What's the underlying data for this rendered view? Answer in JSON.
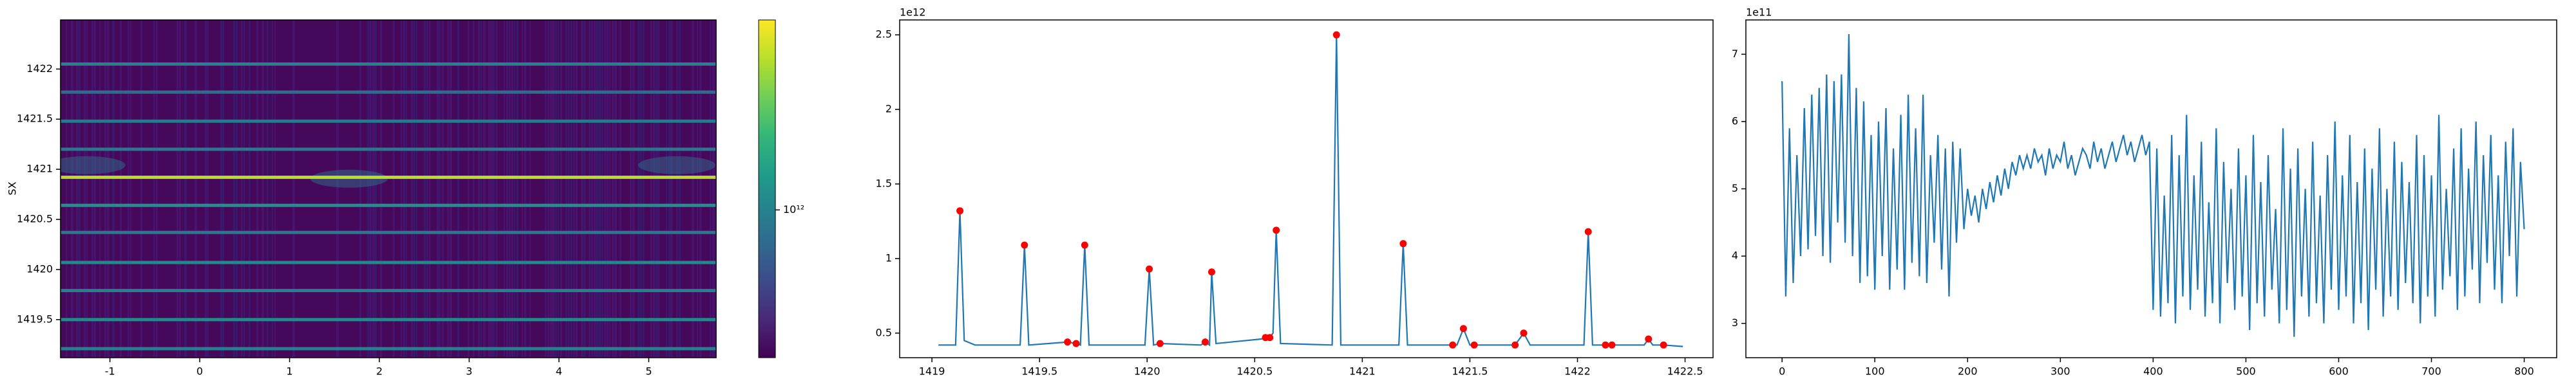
{
  "chart_data": [
    {
      "type": "heatmap",
      "ylabel": "SX",
      "xlim": [
        -1.55,
        5.75
      ],
      "xticks": [
        -1,
        0,
        1,
        2,
        3,
        4,
        5
      ],
      "ylim": [
        1419.12,
        1422.49
      ],
      "yticks": [
        1419.5,
        1420.0,
        1420.5,
        1421.0,
        1421.5,
        1422.0
      ],
      "rows": {
        "y": [
          1422.05,
          1421.77,
          1421.48,
          1421.2,
          1420.92,
          1420.64,
          1420.37,
          1420.07,
          1419.79,
          1419.5,
          1419.21
        ],
        "values": [
          1000000000000.0,
          800000000000.0,
          900000000000.0,
          900000000000.0,
          3500000000000.0,
          1200000000000.0,
          900000000000.0,
          1100000000000.0,
          1000000000000.0,
          1100000000000.0,
          1000000000000.0
        ]
      },
      "colorbar": {
        "log": true,
        "lim": [
          300000000000.0,
          4700000000000.0
        ],
        "ticks": [
          {
            "value": 1000000000000.0,
            "label": "10¹²"
          }
        ]
      }
    },
    {
      "type": "line",
      "offset_label": "1e12",
      "xlim": [
        1418.85,
        1422.63
      ],
      "xticks": [
        1419.0,
        1419.5,
        1420.0,
        1420.5,
        1421.0,
        1421.5,
        1422.0,
        1422.5
      ],
      "ylim": [
        0.335,
        2.6
      ],
      "yticks": [
        0.5,
        1.0,
        1.5,
        2.0,
        2.5
      ],
      "series": [
        {
          "color": "#1f77b4",
          "x": [
            1419.03,
            1419.11,
            1419.13,
            1419.15,
            1419.2,
            1419.41,
            1419.43,
            1419.45,
            1419.63,
            1419.67,
            1419.69,
            1419.71,
            1419.73,
            1419.99,
            1420.01,
            1420.03,
            1420.06,
            1420.25,
            1420.27,
            1420.29,
            1420.3,
            1420.32,
            1420.53,
            1420.55,
            1420.57,
            1420.585,
            1420.6,
            1420.62,
            1420.86,
            1420.88,
            1420.9,
            1421.17,
            1421.19,
            1421.21,
            1421.42,
            1421.44,
            1421.47,
            1421.5,
            1421.52,
            1421.71,
            1421.75,
            1421.78,
            1422.03,
            1422.05,
            1422.07,
            1422.13,
            1422.16,
            1422.31,
            1422.33,
            1422.35,
            1422.4,
            1422.49
          ],
          "values": [
            0.42,
            0.42,
            1.32,
            0.45,
            0.42,
            0.42,
            1.09,
            0.42,
            0.44,
            0.43,
            0.42,
            1.09,
            0.42,
            0.42,
            0.93,
            0.42,
            0.43,
            0.42,
            0.44,
            0.42,
            0.91,
            0.43,
            0.46,
            0.47,
            0.47,
            0.5,
            1.19,
            0.43,
            0.42,
            2.5,
            0.42,
            0.42,
            1.1,
            0.42,
            0.42,
            0.42,
            0.53,
            0.42,
            0.42,
            0.42,
            0.5,
            0.42,
            0.42,
            1.18,
            0.42,
            0.42,
            0.42,
            0.42,
            0.46,
            0.42,
            0.42,
            0.41
          ]
        }
      ],
      "peaks": {
        "color": "#ff0000",
        "x": [
          1419.13,
          1419.43,
          1419.63,
          1419.67,
          1419.71,
          1420.01,
          1420.06,
          1420.27,
          1420.3,
          1420.55,
          1420.57,
          1420.6,
          1420.88,
          1421.19,
          1421.42,
          1421.47,
          1421.52,
          1421.71,
          1421.75,
          1422.05,
          1422.13,
          1422.16,
          1422.33,
          1422.4
        ],
        "values": [
          1.32,
          1.09,
          0.44,
          0.43,
          1.09,
          0.93,
          0.43,
          0.44,
          0.91,
          0.47,
          0.47,
          1.19,
          2.5,
          1.1,
          0.42,
          0.53,
          0.42,
          0.42,
          0.5,
          1.18,
          0.42,
          0.42,
          0.46,
          0.42
        ]
      }
    },
    {
      "type": "line",
      "offset_label": "1e11",
      "color": "#1f77b4",
      "xlim": [
        -39,
        835
      ],
      "xticks": [
        0,
        100,
        200,
        300,
        400,
        500,
        600,
        700,
        800
      ],
      "ylim": [
        2.49,
        7.51
      ],
      "yticks": [
        3,
        4,
        5,
        6,
        7
      ],
      "x": [
        0,
        4,
        8,
        12,
        16,
        20,
        24,
        28,
        32,
        36,
        40,
        44,
        48,
        52,
        56,
        60,
        64,
        68,
        72,
        76,
        80,
        84,
        88,
        92,
        96,
        100,
        104,
        108,
        112,
        116,
        120,
        124,
        128,
        132,
        136,
        140,
        144,
        148,
        152,
        156,
        160,
        164,
        168,
        172,
        176,
        180,
        184,
        188,
        192,
        196,
        200,
        204,
        208,
        212,
        216,
        220,
        224,
        228,
        232,
        236,
        240,
        244,
        248,
        252,
        256,
        260,
        264,
        268,
        272,
        276,
        280,
        284,
        288,
        292,
        296,
        300,
        304,
        308,
        312,
        316,
        320,
        324,
        328,
        332,
        336,
        340,
        344,
        348,
        352,
        356,
        360,
        364,
        368,
        372,
        376,
        380,
        384,
        388,
        392,
        396,
        400,
        404,
        408,
        412,
        416,
        420,
        424,
        428,
        432,
        436,
        440,
        444,
        448,
        452,
        456,
        460,
        464,
        468,
        472,
        476,
        480,
        484,
        488,
        492,
        496,
        500,
        504,
        508,
        512,
        516,
        520,
        524,
        528,
        532,
        536,
        540,
        544,
        548,
        552,
        556,
        560,
        564,
        568,
        572,
        576,
        580,
        584,
        588,
        592,
        596,
        600,
        604,
        608,
        612,
        616,
        620,
        624,
        628,
        632,
        636,
        640,
        644,
        648,
        652,
        656,
        660,
        664,
        668,
        672,
        676,
        680,
        684,
        688,
        692,
        696,
        700,
        704,
        708,
        712,
        716,
        720,
        724,
        728,
        732,
        736,
        740,
        744,
        748,
        752,
        756,
        760,
        764,
        768,
        772,
        776,
        780,
        784,
        788,
        792,
        796,
        800
      ],
      "values": [
        6.6,
        3.4,
        5.9,
        3.6,
        5.5,
        4.0,
        6.2,
        4.1,
        6.4,
        4.3,
        6.5,
        4.0,
        6.7,
        3.9,
        6.6,
        4.5,
        6.7,
        4.2,
        7.3,
        4.0,
        6.5,
        3.6,
        6.3,
        3.7,
        5.8,
        3.5,
        6.0,
        4.0,
        6.2,
        3.5,
        5.6,
        3.8,
        6.1,
        3.5,
        6.4,
        3.9,
        5.9,
        3.7,
        6.4,
        3.6,
        5.5,
        4.2,
        5.8,
        3.8,
        5.6,
        3.4,
        5.7,
        4.2,
        5.6,
        4.4,
        5.0,
        4.6,
        4.9,
        4.5,
        5.0,
        4.7,
        5.1,
        4.8,
        5.2,
        4.9,
        5.3,
        5.0,
        5.4,
        5.2,
        5.5,
        5.3,
        5.5,
        5.3,
        5.6,
        5.4,
        5.5,
        5.2,
        5.6,
        5.3,
        5.5,
        5.4,
        5.7,
        5.3,
        5.5,
        5.2,
        5.4,
        5.6,
        5.5,
        5.3,
        5.7,
        5.4,
        5.6,
        5.3,
        5.5,
        5.7,
        5.4,
        5.6,
        5.8,
        5.5,
        5.7,
        5.4,
        5.6,
        5.8,
        5.5,
        5.7,
        3.2,
        5.6,
        3.1,
        4.9,
        3.3,
        5.8,
        3.0,
        5.5,
        3.4,
        6.1,
        3.2,
        5.2,
        3.5,
        5.7,
        3.1,
        4.8,
        3.3,
        5.9,
        3.0,
        5.4,
        3.6,
        5.0,
        3.2,
        5.6,
        3.4,
        5.2,
        2.9,
        5.8,
        3.3,
        5.1,
        3.1,
        5.5,
        3.5,
        4.7,
        3.0,
        5.9,
        3.2,
        5.3,
        2.8,
        5.6,
        3.4,
        5.0,
        3.1,
        5.7,
        3.3,
        4.9,
        3.0,
        5.5,
        3.5,
        6.0,
        3.2,
        5.2,
        3.4,
        5.8,
        3.0,
        5.1,
        3.3,
        5.6,
        2.9,
        5.3,
        3.5,
        5.9,
        3.1,
        5.0,
        3.4,
        5.7,
        3.2,
        5.4,
        3.6,
        5.1,
        3.3,
        5.8,
        3.0,
        5.5,
        3.4,
        5.2,
        3.1,
        6.1,
        3.5,
        5.0,
        3.7,
        5.6,
        3.2,
        5.9,
        3.4,
        5.3,
        3.8,
        6.0,
        3.3,
        5.5,
        3.9,
        5.8,
        3.5,
        5.2,
        3.3,
        5.7,
        4.0,
        5.9,
        3.4,
        5.4,
        4.4
      ]
    }
  ]
}
